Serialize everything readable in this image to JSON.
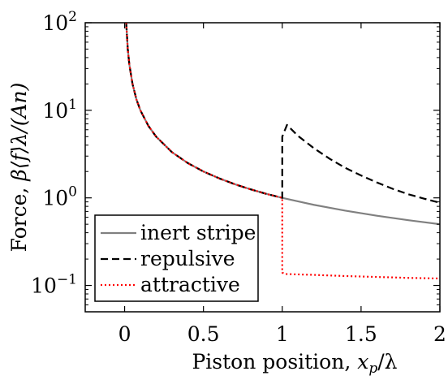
{
  "chart_data": {
    "type": "line",
    "xlabel_prefix": "Piston position, ",
    "xlabel_math_base": "x",
    "xlabel_math_sub": "p",
    "xlabel_math_suffix": "/λ",
    "ylabel_prefix": "Force, ",
    "ylabel_math": "β⟨f⟩λ/(An)",
    "xlim": [
      -0.25,
      2.0
    ],
    "ylim": [
      0.05,
      100
    ],
    "yscale": "log",
    "grid": false,
    "legend_position": "bottom-left",
    "x_ticks": [
      {
        "value": 0,
        "label": "0"
      },
      {
        "value": 0.5,
        "label": "0.5"
      },
      {
        "value": 1,
        "label": "1"
      },
      {
        "value": 1.5,
        "label": "1.5"
      },
      {
        "value": 2,
        "label": "2"
      }
    ],
    "y_ticks": [
      {
        "value": 100,
        "base": "10",
        "exp": "2"
      },
      {
        "value": 10,
        "base": "10",
        "exp": "1"
      },
      {
        "value": 1,
        "base": "10",
        "exp": "0"
      },
      {
        "value": 0.1,
        "base": "10",
        "exp": "−1"
      }
    ],
    "series": [
      {
        "name": "inert stripe",
        "color": "#808080",
        "dash": "solid",
        "x": [
          0.01,
          0.02,
          0.03,
          0.05,
          0.075,
          0.1,
          0.15,
          0.2,
          0.3,
          0.4,
          0.5,
          0.6,
          0.7,
          0.8,
          0.9,
          1.0,
          1.2,
          1.4,
          1.6,
          1.8,
          2.0
        ],
        "y": [
          100,
          50,
          33.3,
          20,
          13.3,
          10,
          6.67,
          5,
          3.33,
          2.5,
          2,
          1.67,
          1.43,
          1.25,
          1.11,
          1.0,
          0.833,
          0.714,
          0.625,
          0.556,
          0.5
        ]
      },
      {
        "name": "repulsive",
        "color": "#000000",
        "dash": "dashed",
        "x": [
          0.01,
          0.02,
          0.03,
          0.05,
          0.075,
          0.1,
          0.15,
          0.2,
          0.3,
          0.4,
          0.5,
          0.6,
          0.7,
          0.8,
          0.9,
          1.0,
          1.0,
          1.03,
          1.1,
          1.2,
          1.3,
          1.4,
          1.5,
          1.6,
          1.7,
          1.8,
          1.9,
          2.0
        ],
        "y": [
          100,
          50,
          33.3,
          20,
          13.3,
          10,
          6.67,
          5,
          3.33,
          2.5,
          2,
          1.67,
          1.43,
          1.25,
          1.11,
          1.0,
          5.0,
          6.8,
          5.1,
          3.7,
          2.8,
          2.2,
          1.8,
          1.5,
          1.27,
          1.1,
          0.98,
          0.88
        ]
      },
      {
        "name": "attractive",
        "color": "#ff0000",
        "dash": "dotted",
        "x": [
          0.01,
          0.02,
          0.03,
          0.05,
          0.075,
          0.1,
          0.15,
          0.2,
          0.3,
          0.4,
          0.5,
          0.6,
          0.7,
          0.8,
          0.9,
          1.0,
          1.0,
          1.02,
          1.2,
          1.4,
          1.6,
          1.8,
          2.0
        ],
        "y": [
          100,
          50,
          33.3,
          20,
          13.3,
          10,
          6.67,
          5,
          3.33,
          2.5,
          2,
          1.67,
          1.43,
          1.25,
          1.11,
          1.0,
          0.14,
          0.135,
          0.132,
          0.128,
          0.125,
          0.122,
          0.12
        ]
      }
    ]
  }
}
